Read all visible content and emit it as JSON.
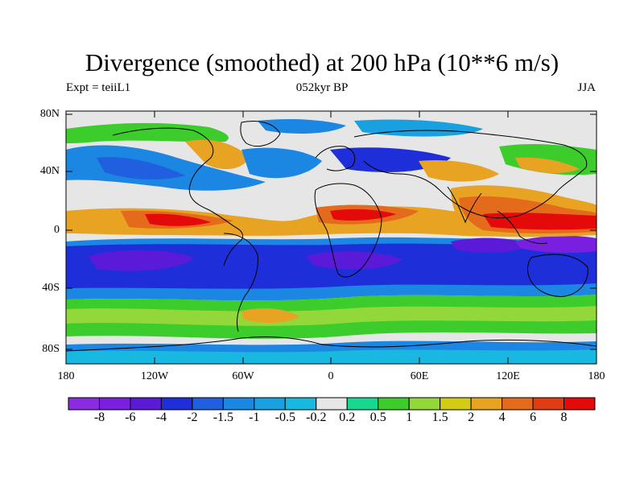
{
  "map": {
    "title": "Divergence (smoothed) at 200 hPa (10**6 m/s)",
    "subtitle_left": "Expt = teiiL1",
    "subtitle_center": "052kyr BP",
    "subtitle_right": "JJA",
    "projection": "cylindrical equidistant",
    "lat_ticks": [
      "80N",
      "40N",
      "0",
      "40S",
      "80S"
    ],
    "lon_ticks": [
      "180",
      "120W",
      "60W",
      "0",
      "60E",
      "120E",
      "180"
    ]
  },
  "colorbar": {
    "orientation": "horizontal",
    "levels": [
      "-8",
      "-6",
      "-4",
      "-2",
      "-1.5",
      "-1",
      "-0.5",
      "-0.2",
      "0.2",
      "0.5",
      "1",
      "1.5",
      "2",
      "4",
      "6",
      "8"
    ],
    "colors": [
      "#8a2be2",
      "#7a1fe0",
      "#5a1ad8",
      "#1e2fd9",
      "#1f5fe0",
      "#1c86e3",
      "#19a0e0",
      "#19b8e0",
      "#e6e6e6",
      "#18d890",
      "#3ccc2c",
      "#92d83a",
      "#d4cc14",
      "#e8a322",
      "#e46a1c",
      "#e03c14",
      "#e40a0a"
    ]
  }
}
